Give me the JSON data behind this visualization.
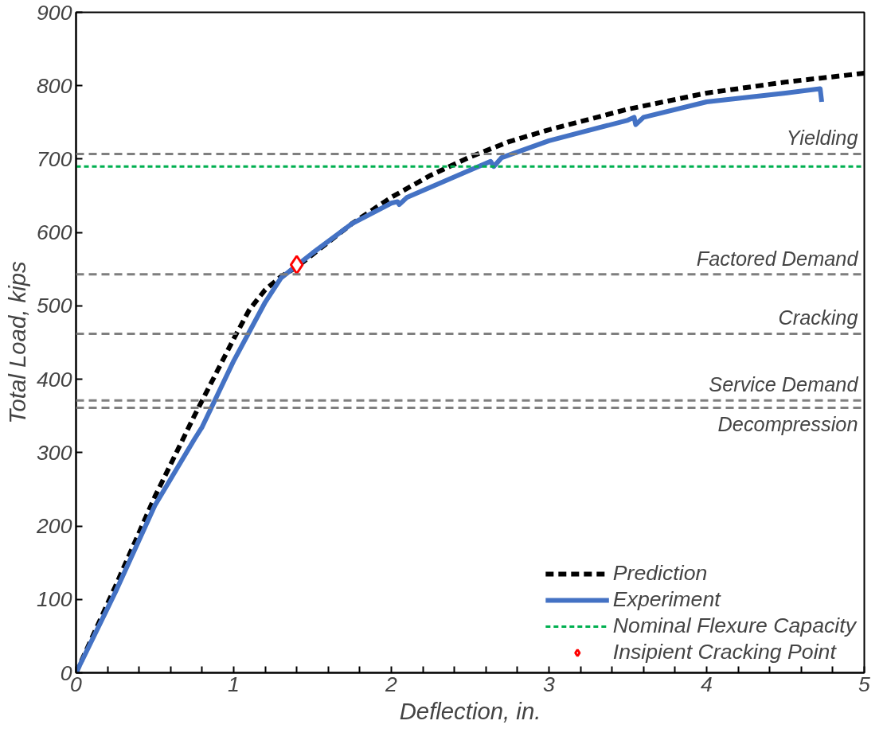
{
  "chart_data": {
    "type": "line",
    "xlabel": "Deflection, in.",
    "ylabel": "Total Load, kips",
    "xlim": [
      0,
      5
    ],
    "ylim": [
      0,
      900
    ],
    "xticks": [
      0,
      {
        "value": 0.2,
        "label": null
      },
      {
        "value": 0.4,
        "label": null
      },
      {
        "value": 0.6,
        "label": null
      },
      {
        "value": 0.8,
        "label": null
      },
      1,
      {
        "value": 1.2,
        "label": null
      },
      {
        "value": 1.4,
        "label": null
      },
      {
        "value": 1.6,
        "label": null
      },
      {
        "value": 1.8,
        "label": null
      },
      2,
      {
        "value": 2.2,
        "label": null
      },
      {
        "value": 2.4,
        "label": null
      },
      {
        "value": 2.6,
        "label": null
      },
      {
        "value": 2.8,
        "label": null
      },
      3,
      {
        "value": 3.2,
        "label": null
      },
      {
        "value": 3.4,
        "label": null
      },
      {
        "value": 3.6,
        "label": null
      },
      {
        "value": 3.8,
        "label": null
      },
      4,
      {
        "value": 4.2,
        "label": null
      },
      {
        "value": 4.4,
        "label": null
      },
      {
        "value": 4.6,
        "label": null
      },
      {
        "value": 4.8,
        "label": null
      },
      5
    ],
    "yticks": [
      0,
      100,
      200,
      300,
      400,
      500,
      600,
      700,
      800,
      900
    ],
    "grid": false,
    "legend": "bottom right",
    "series": [
      {
        "name": "Prediction",
        "color": "#000000",
        "line_style": "dashed",
        "x": [
          0,
          0.25,
          0.5,
          0.75,
          1,
          1.1,
          1.2,
          1.3,
          1.4,
          1.5,
          1.75,
          2,
          2.25,
          2.5,
          2.75,
          3,
          3.5,
          4,
          4.5,
          5
        ],
        "values": [
          0,
          118,
          240,
          350,
          455,
          495,
          522,
          540,
          553,
          570,
          612,
          648,
          678,
          703,
          724,
          740,
          768,
          790,
          805,
          817
        ]
      },
      {
        "name": "Experiment",
        "color": "#4472c4",
        "line_style": "solid",
        "x": [
          0,
          0.25,
          0.5,
          0.75,
          0.8,
          1,
          1.2,
          1.3,
          1.4,
          1.5,
          1.75,
          2,
          2.04,
          2.05,
          2.1,
          2.5,
          2.63,
          2.65,
          2.7,
          3,
          3.5,
          3.54,
          3.55,
          3.6,
          4,
          4.5,
          4.72,
          4.73
        ],
        "values": [
          0,
          110,
          228,
          318,
          335,
          425,
          505,
          538,
          555,
          572,
          612,
          640,
          642,
          638,
          648,
          685,
          697,
          690,
          702,
          725,
          753,
          757,
          747,
          757,
          778,
          790,
          796,
          778
        ]
      },
      {
        "name": "Nominal Flexure Capacity",
        "color": "#00b050",
        "line_style": "dotted",
        "x": [
          0,
          5
        ],
        "values": [
          690,
          690
        ]
      },
      {
        "name": "Insipient Cracking Point",
        "type": "scatter",
        "marker": "diamond",
        "color": "#ff0000",
        "x": [
          1.4
        ],
        "values": [
          556
        ]
      }
    ],
    "ref_lines": [
      {
        "axis": "y",
        "value": 707,
        "label": "Yielding",
        "color": "#7f7f7f",
        "line_style": "dashed"
      },
      {
        "axis": "y",
        "value": 543,
        "label": "Factored Demand",
        "color": "#7f7f7f",
        "line_style": "dashed"
      },
      {
        "axis": "y",
        "value": 462,
        "label": "Cracking",
        "color": "#7f7f7f",
        "line_style": "dashed"
      },
      {
        "axis": "y",
        "value": 371,
        "label": "Service Demand",
        "color": "#7f7f7f",
        "line_style": "dashed"
      },
      {
        "axis": "y",
        "value": 361,
        "label": "Decompression",
        "color": "#7f7f7f",
        "line_style": "dashed"
      }
    ]
  }
}
